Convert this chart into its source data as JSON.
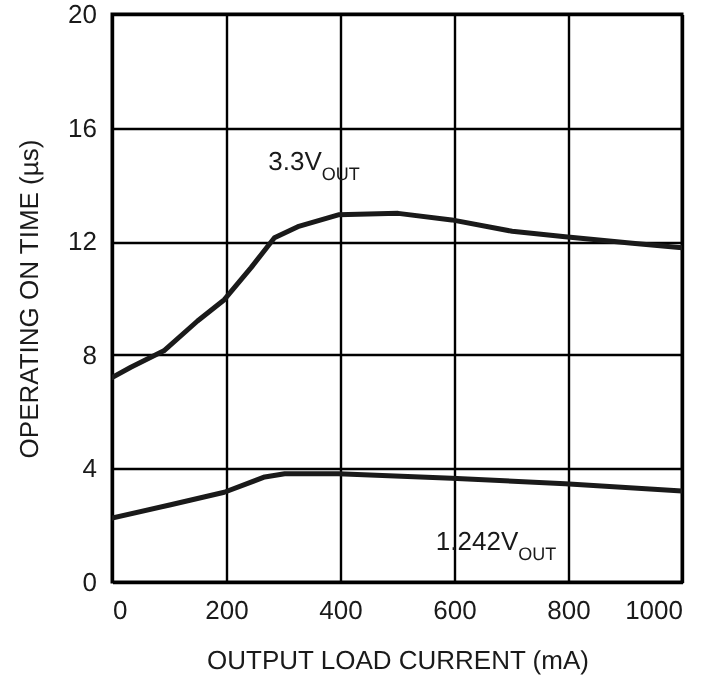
{
  "chart_data": {
    "type": "line",
    "xlabel": "OUTPUT LOAD CURRENT (mA)",
    "ylabel": "OPERATING ON TIME (µs)",
    "xlim": [
      0,
      1000
    ],
    "ylim": [
      0,
      20
    ],
    "xticks": [
      0,
      200,
      400,
      600,
      800,
      {
        "value": 1000,
        "label": "1000"
      }
    ],
    "yticks": [
      0,
      4,
      8,
      12,
      16,
      20
    ],
    "grid": true,
    "series": [
      {
        "color": "#1a1a1a",
        "x": [
          0,
          33,
          91,
          150,
          197,
          244,
          285,
          326,
          397,
          502,
          596,
          702,
          795,
          913,
          1000
        ],
        "values": [
          7.2,
          7.56,
          8.14,
          9.19,
          9.94,
          11.07,
          12.12,
          12.51,
          12.93,
          12.98,
          12.75,
          12.35,
          12.16,
          11.93,
          11.77
        ]
      },
      {
        "color": "#1a1a1a",
        "x": [
          0,
          103,
          197,
          268,
          303,
          397,
          596,
          795,
          1000
        ],
        "values": [
          2.25,
          2.72,
          3.16,
          3.7,
          3.81,
          3.81,
          3.65,
          3.46,
          3.2
        ]
      }
    ],
    "annotations": [
      "3.3V$_{OUT}$",
      "1.242V$_{OUT}$"
    ]
  }
}
